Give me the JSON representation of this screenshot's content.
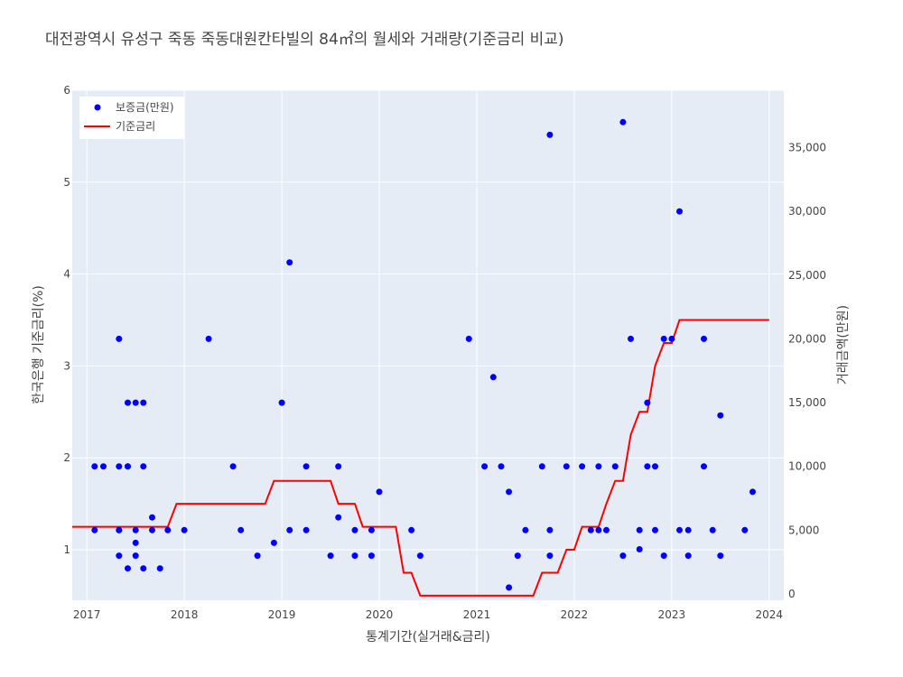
{
  "chart_data": {
    "type": "scatter+line",
    "title": "대전광역시 유성구 죽동 죽동대원칸타빌의 84㎡의 월세와 거래량(기준금리 비교)",
    "xlabel": "통계기간(실거래&금리)",
    "ylabel_left": "한국은행 기준금리(%)",
    "ylabel_right": "거래금액(만원)",
    "x_range": [
      2016.85,
      2024.15
    ],
    "y_left_range": [
      0.45,
      6.0
    ],
    "y_right_range": [
      -500,
      39500
    ],
    "x_ticks": [
      "2017",
      "2018",
      "2019",
      "2020",
      "2021",
      "2022",
      "2023",
      "2024"
    ],
    "y_left_ticks": [
      "1",
      "2",
      "3",
      "4",
      "5",
      "6"
    ],
    "y_right_ticks": [
      "0",
      "5,000",
      "10,000",
      "15,000",
      "20,000",
      "25,000",
      "30,000",
      "35,000"
    ],
    "legend": {
      "placement": "top-left",
      "entries": [
        "보증금(만원)",
        "기준금리"
      ]
    },
    "grid": true,
    "colors": {
      "deposit": "#0000ff",
      "rate": "#ff0000",
      "plot_bg": "#e5ecf6"
    },
    "series": [
      {
        "name": "보증금(만원)",
        "axis": "right",
        "type": "scatter",
        "points": [
          [
            2017.08,
            10000
          ],
          [
            2017.08,
            5000
          ],
          [
            2017.17,
            10000
          ],
          [
            2017.33,
            20000
          ],
          [
            2017.33,
            10000
          ],
          [
            2017.33,
            5000
          ],
          [
            2017.33,
            5000
          ],
          [
            2017.33,
            3000
          ],
          [
            2017.42,
            15000
          ],
          [
            2017.42,
            10000
          ],
          [
            2017.42,
            10000
          ],
          [
            2017.42,
            2000
          ],
          [
            2017.5,
            15000
          ],
          [
            2017.5,
            5000
          ],
          [
            2017.5,
            4000
          ],
          [
            2017.5,
            3000
          ],
          [
            2017.58,
            15000
          ],
          [
            2017.58,
            10000
          ],
          [
            2017.58,
            2000
          ],
          [
            2017.67,
            6000
          ],
          [
            2017.67,
            5000
          ],
          [
            2017.75,
            2000
          ],
          [
            2017.83,
            5000
          ],
          [
            2018.0,
            5000
          ],
          [
            2018.25,
            20000
          ],
          [
            2018.5,
            10000
          ],
          [
            2018.58,
            5000
          ],
          [
            2018.75,
            3000
          ],
          [
            2018.92,
            4000
          ],
          [
            2019.0,
            15000
          ],
          [
            2019.08,
            26000
          ],
          [
            2019.08,
            5000
          ],
          [
            2019.25,
            10000
          ],
          [
            2019.25,
            5000
          ],
          [
            2019.5,
            3000
          ],
          [
            2019.58,
            10000
          ],
          [
            2019.58,
            6000
          ],
          [
            2019.75,
            5000
          ],
          [
            2019.75,
            3000
          ],
          [
            2019.92,
            5000
          ],
          [
            2019.92,
            3000
          ],
          [
            2020.0,
            8000
          ],
          [
            2020.33,
            5000
          ],
          [
            2020.42,
            3000
          ],
          [
            2020.92,
            20000
          ],
          [
            2021.08,
            10000
          ],
          [
            2021.17,
            17000
          ],
          [
            2021.25,
            10000
          ],
          [
            2021.33,
            8000
          ],
          [
            2021.33,
            500
          ],
          [
            2021.42,
            3000
          ],
          [
            2021.5,
            5000
          ],
          [
            2021.67,
            10000
          ],
          [
            2021.75,
            36000
          ],
          [
            2021.75,
            5000
          ],
          [
            2021.75,
            3000
          ],
          [
            2021.92,
            10000
          ],
          [
            2022.08,
            10000
          ],
          [
            2022.17,
            5000
          ],
          [
            2022.25,
            10000
          ],
          [
            2022.25,
            5000
          ],
          [
            2022.33,
            5000
          ],
          [
            2022.42,
            10000
          ],
          [
            2022.5,
            37000
          ],
          [
            2022.5,
            3000
          ],
          [
            2022.58,
            20000
          ],
          [
            2022.67,
            5000
          ],
          [
            2022.67,
            3500
          ],
          [
            2022.75,
            15000
          ],
          [
            2022.75,
            10000
          ],
          [
            2022.83,
            10000
          ],
          [
            2022.83,
            5000
          ],
          [
            2022.92,
            20000
          ],
          [
            2022.92,
            3000
          ],
          [
            2023.0,
            20000
          ],
          [
            2023.08,
            30000
          ],
          [
            2023.08,
            5000
          ],
          [
            2023.17,
            5000
          ],
          [
            2023.17,
            3000
          ],
          [
            2023.33,
            20000
          ],
          [
            2023.33,
            10000
          ],
          [
            2023.42,
            5000
          ],
          [
            2023.5,
            14000
          ],
          [
            2023.5,
            3000
          ],
          [
            2023.75,
            5000
          ],
          [
            2023.83,
            8000
          ]
        ]
      },
      {
        "name": "기준금리",
        "axis": "left",
        "type": "line",
        "points": [
          [
            2016.85,
            1.25
          ],
          [
            2017.83,
            1.25
          ],
          [
            2017.92,
            1.5
          ],
          [
            2018.83,
            1.5
          ],
          [
            2018.92,
            1.75
          ],
          [
            2019.5,
            1.75
          ],
          [
            2019.58,
            1.5
          ],
          [
            2019.75,
            1.5
          ],
          [
            2019.83,
            1.25
          ],
          [
            2020.17,
            1.25
          ],
          [
            2020.25,
            0.75
          ],
          [
            2020.33,
            0.75
          ],
          [
            2020.42,
            0.5
          ],
          [
            2021.58,
            0.5
          ],
          [
            2021.67,
            0.75
          ],
          [
            2021.83,
            0.75
          ],
          [
            2021.92,
            1.0
          ],
          [
            2022.0,
            1.0
          ],
          [
            2022.08,
            1.25
          ],
          [
            2022.25,
            1.25
          ],
          [
            2022.33,
            1.5
          ],
          [
            2022.42,
            1.75
          ],
          [
            2022.5,
            1.75
          ],
          [
            2022.58,
            2.25
          ],
          [
            2022.67,
            2.5
          ],
          [
            2022.75,
            2.5
          ],
          [
            2022.83,
            3.0
          ],
          [
            2022.92,
            3.25
          ],
          [
            2023.0,
            3.25
          ],
          [
            2023.08,
            3.5
          ],
          [
            2024.0,
            3.5
          ]
        ]
      }
    ]
  }
}
